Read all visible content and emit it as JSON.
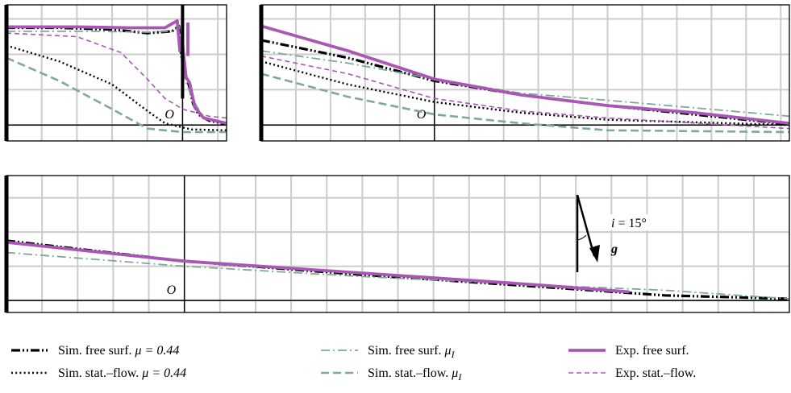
{
  "chart_data": {
    "type": "line",
    "grid": true,
    "colors": {
      "sim_free_mu": "#000000",
      "sim_stat_mu": "#000000",
      "sim_free_muI": "#7fa898",
      "sim_stat_muI": "#7fa898",
      "exp_free": "#a857b4",
      "exp_stat": "#a857b4",
      "grid": "#cccccc",
      "frame": "#000000"
    },
    "panels": [
      {
        "id": "top-left",
        "xlim": [
          -10,
          2.5
        ],
        "ylim": [
          -0.9,
          6.8
        ],
        "origin_label": "O",
        "series": [
          {
            "key": "sim_free_mu",
            "points": [
              [
                -10,
                5.5
              ],
              [
                -7,
                5.5
              ],
              [
                -4,
                5.4
              ],
              [
                -2,
                5.2
              ],
              [
                -0.6,
                5.3
              ],
              [
                -0.2,
                5.6
              ],
              [
                -0.08,
                4.0
              ],
              [
                0.05,
                3.2
              ],
              [
                0.3,
                2.5
              ],
              [
                0.6,
                1.2
              ],
              [
                0.9,
                0.6
              ],
              [
                1.5,
                0.25
              ],
              [
                2.5,
                0.05
              ]
            ]
          },
          {
            "key": "sim_stat_mu",
            "points": [
              [
                -10,
                4.5
              ],
              [
                -7,
                3.6
              ],
              [
                -4,
                2.3
              ],
              [
                -2,
                0.8
              ],
              [
                -1,
                0.1
              ],
              [
                0.5,
                -0.25
              ],
              [
                2.5,
                -0.3
              ]
            ]
          },
          {
            "key": "sim_free_muI",
            "points": [
              [
                -10,
                5.3
              ],
              [
                -5,
                5.3
              ],
              [
                -2,
                5.25
              ],
              [
                -0.5,
                5.3
              ],
              [
                -0.2,
                5.6
              ],
              [
                0,
                3.0
              ],
              [
                0.5,
                1.6
              ],
              [
                1.2,
                0.4
              ],
              [
                2.5,
                0.1
              ]
            ]
          },
          {
            "key": "sim_stat_muI",
            "points": [
              [
                -10,
                3.8
              ],
              [
                -7,
                2.5
              ],
              [
                -4,
                0.9
              ],
              [
                -2,
                -0.2
              ],
              [
                0,
                -0.4
              ],
              [
                2.5,
                -0.4
              ]
            ]
          },
          {
            "key": "exp_free",
            "points": [
              [
                -10,
                5.55
              ],
              [
                -6,
                5.55
              ],
              [
                -3,
                5.5
              ],
              [
                -1,
                5.5
              ],
              [
                -0.3,
                5.9
              ],
              [
                -0.15,
                4.2
              ],
              [
                -0.05,
                5.0
              ],
              [
                0.2,
                2.7
              ],
              [
                0.4,
                2.4
              ],
              [
                0.7,
                1.0
              ],
              [
                1.2,
                0.4
              ],
              [
                2.5,
                0.1
              ]
            ]
          },
          {
            "key": "exp_free",
            "points": [
              [
                0.3,
                5.8
              ],
              [
                0.3,
                3.9
              ]
            ]
          },
          {
            "key": "exp_stat",
            "points": [
              [
                -10,
                5.2
              ],
              [
                -6,
                5.0
              ],
              [
                -3.5,
                4.1
              ],
              [
                -2,
                2.6
              ],
              [
                -1,
                1.5
              ],
              [
                0,
                0.9
              ],
              [
                1.5,
                0.5
              ],
              [
                2.5,
                0.4
              ]
            ]
          }
        ]
      },
      {
        "id": "top-right",
        "xlim": [
          -10,
          20.5
        ],
        "ylim": [
          -0.9,
          6.8
        ],
        "origin_label": "O",
        "series": [
          {
            "key": "sim_free_mu",
            "points": [
              [
                -10,
                4.8
              ],
              [
                -5,
                3.8
              ],
              [
                0,
                2.5
              ],
              [
                5,
                1.7
              ],
              [
                10,
                1.1
              ],
              [
                15,
                0.6
              ],
              [
                20,
                0.1
              ],
              [
                20.5,
                0.05
              ]
            ]
          },
          {
            "key": "sim_stat_mu",
            "points": [
              [
                -10,
                3.6
              ],
              [
                -5,
                2.3
              ],
              [
                0,
                1.3
              ],
              [
                5,
                0.7
              ],
              [
                10,
                0.3
              ],
              [
                20.5,
                0.0
              ]
            ]
          },
          {
            "key": "sim_free_muI",
            "points": [
              [
                -10,
                4.2
              ],
              [
                -5,
                3.5
              ],
              [
                0,
                2.6
              ],
              [
                5,
                1.8
              ],
              [
                10,
                1.4
              ],
              [
                20.5,
                0.5
              ]
            ]
          },
          {
            "key": "sim_stat_muI",
            "points": [
              [
                -10,
                2.9
              ],
              [
                -5,
                1.6
              ],
              [
                0,
                0.6
              ],
              [
                5,
                0.1
              ],
              [
                10,
                -0.3
              ],
              [
                20.5,
                -0.4
              ]
            ]
          },
          {
            "key": "exp_free",
            "points": [
              [
                -10,
                5.6
              ],
              [
                -5,
                4.2
              ],
              [
                0,
                2.6
              ],
              [
                5,
                1.7
              ],
              [
                10,
                1.1
              ],
              [
                15,
                0.7
              ],
              [
                20.5,
                0.1
              ]
            ]
          },
          {
            "key": "exp_stat",
            "points": [
              [
                -10,
                3.9
              ],
              [
                -5,
                2.9
              ],
              [
                0,
                1.5
              ],
              [
                5,
                0.8
              ],
              [
                10,
                0.4
              ],
              [
                20.5,
                -0.2
              ]
            ]
          }
        ]
      },
      {
        "id": "bottom",
        "xlim": [
          -10,
          34
        ],
        "ylim": [
          -0.7,
          7.3
        ],
        "origin_label": "O",
        "series": [
          {
            "key": "sim_free_mu",
            "points": [
              [
                -10,
                3.5
              ],
              [
                0,
                2.3
              ],
              [
                10,
                1.5
              ],
              [
                20,
                0.8
              ],
              [
                27,
                0.3
              ],
              [
                34,
                0.1
              ]
            ]
          },
          {
            "key": "sim_free_muI",
            "points": [
              [
                -10,
                2.8
              ],
              [
                0,
                2.0
              ],
              [
                10,
                1.4
              ],
              [
                20,
                0.9
              ],
              [
                27,
                0.6
              ],
              [
                34,
                0.1
              ]
            ]
          },
          {
            "key": "exp_free",
            "points": [
              [
                -10,
                3.4
              ],
              [
                0,
                2.3
              ],
              [
                10,
                1.6
              ],
              [
                20,
                0.9
              ],
              [
                25,
                0.5
              ]
            ]
          }
        ]
      }
    ],
    "annotation": {
      "angle_label": "i = 15°",
      "vector_label": "g"
    },
    "legend": [
      {
        "key": "sim_free_mu",
        "label_prefix": "Sim. free surf.",
        "label_math": "μ = 0.44",
        "sub": ""
      },
      {
        "key": "sim_stat_mu",
        "label_prefix": "Sim. stat.–flow.",
        "label_math": "μ = 0.44",
        "sub": ""
      },
      {
        "key": "sim_free_muI",
        "label_prefix": "Sim. free surf.",
        "label_math": "μ",
        "sub": "I"
      },
      {
        "key": "sim_stat_muI",
        "label_prefix": "Sim. stat.–flow.",
        "label_math": "μ",
        "sub": "I"
      },
      {
        "key": "exp_free",
        "label_prefix": "Exp. free surf.",
        "label_math": "",
        "sub": ""
      },
      {
        "key": "exp_stat",
        "label_prefix": "Exp. stat.–flow.",
        "label_math": "",
        "sub": ""
      }
    ]
  }
}
